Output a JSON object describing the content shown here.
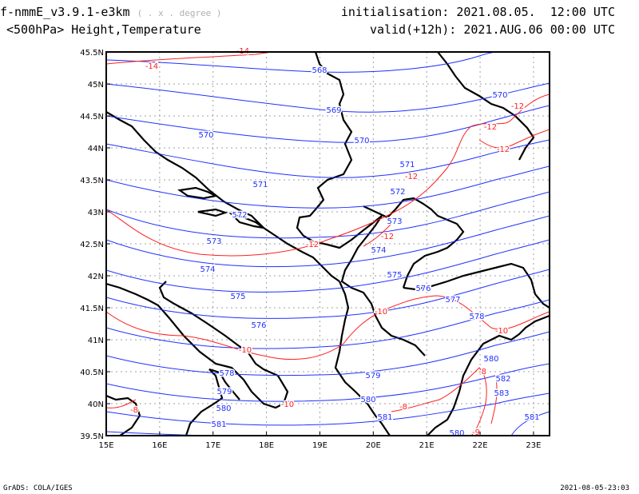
{
  "header": {
    "model": "f-nmmE_v3.9.1-e3km",
    "units": "( . x . degree )",
    "field": "<500hPa> Height,Temperature",
    "init_label": "initialisation:",
    "init_value": "2021.08.05.  12:00 UTC",
    "valid_label": "valid(+12h):",
    "valid_value": "2021.AUG.06 00:00 UTC"
  },
  "footer": {
    "left": "GrADS: COLA/IGES",
    "right": "2021-08-05-23:03"
  },
  "colors": {
    "height_contour": "#2030ff",
    "temperature_contour": "#ff2020",
    "coastline": "#000000",
    "grid": "#a0a0a0"
  },
  "chart_data": {
    "type": "contour-map",
    "lon_range": [
      15,
      23.3
    ],
    "lat_range": [
      39.5,
      45.5
    ],
    "lon_ticks": [
      "15E",
      "16E",
      "17E",
      "18E",
      "19E",
      "20E",
      "21E",
      "22E",
      "23E"
    ],
    "lat_ticks": [
      "39.5N",
      "40N",
      "40.5N",
      "41N",
      "41.5N",
      "42N",
      "42.5N",
      "43N",
      "43.5N",
      "44N",
      "44.5N",
      "45N",
      "45.5N"
    ],
    "grid": true,
    "height_labels": [
      "568",
      "569",
      "570",
      "570",
      "570",
      "571",
      "571",
      "572",
      "572",
      "573",
      "573",
      "574",
      "574",
      "575",
      "575",
      "576",
      "576",
      "577",
      "578",
      "578",
      "579",
      "579",
      "580",
      "580",
      "580",
      "581",
      "581",
      "582",
      "583",
      "581",
      "580"
    ],
    "temperature_labels": [
      "-14",
      "-14",
      "-12",
      "-12",
      "-12",
      "-12",
      "-12",
      "-12",
      "-10",
      "-10",
      "-10",
      "-10",
      "-8",
      "-8",
      "-8",
      "-9"
    ]
  }
}
